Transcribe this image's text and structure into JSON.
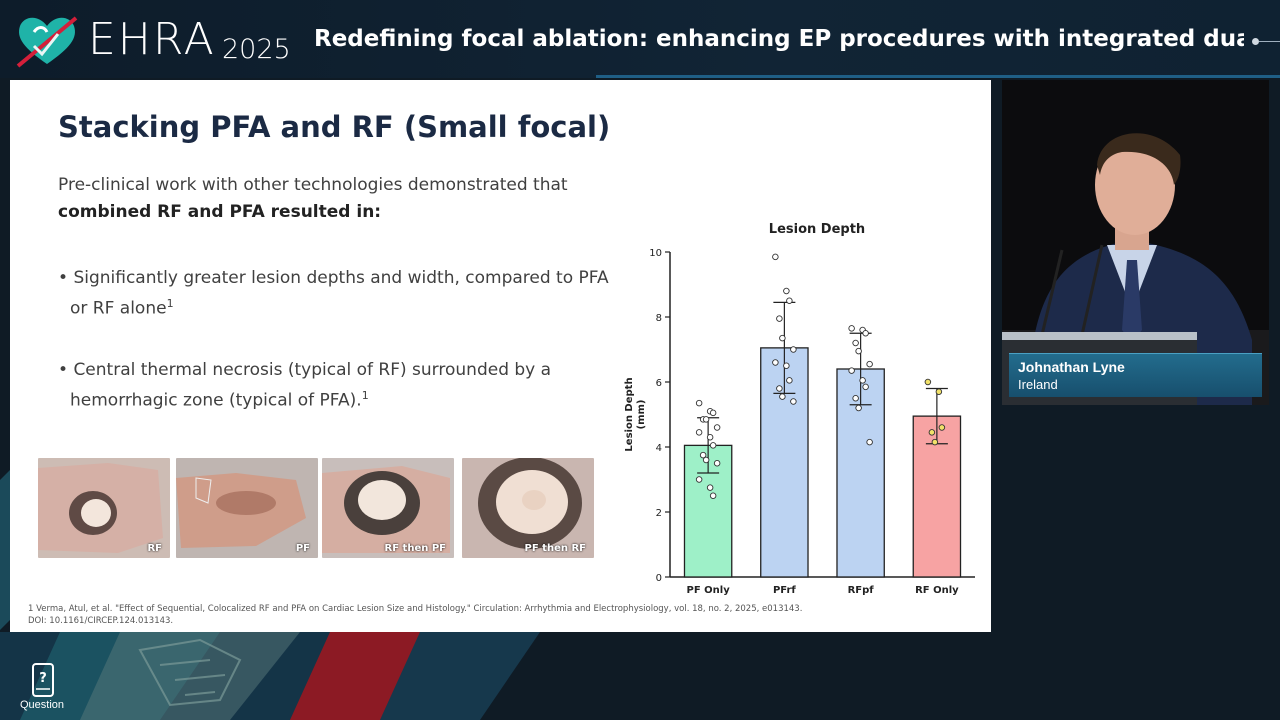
{
  "header": {
    "logo_text": "EHRA",
    "logo_year": "2025",
    "title": "Redefining focal ablation: enhancing EP procedures with integrated dual-e..."
  },
  "slide": {
    "title": "Stacking PFA and RF (Small focal)",
    "intro_line1": "Pre-clinical work with other technologies demonstrated that",
    "intro_line2": "combined RF and PFA resulted in:",
    "bullets": [
      {
        "text": "Significantly greater lesion depths and width, compared to PFA or RF alone",
        "sup": "1"
      },
      {
        "text": "Central thermal necrosis (typical of RF) surrounded by a hemorrhagic zone (typical of PFA).",
        "sup": "1"
      }
    ],
    "photos": [
      {
        "label": "RF"
      },
      {
        "label": "PF"
      },
      {
        "label": "RF then PF"
      },
      {
        "label": "PF then RF"
      }
    ],
    "footnote_line1": "1 Verma, Atul, et al. \"Effect of Sequential, Colocalized RF and PFA on Cardiac Lesion Size and Histology.\" Circulation: Arrhythmia and Electrophysiology, vol. 18, no. 2, 2025, e013143.",
    "footnote_line2": "DOI: 10.1161/CIRCEP.124.013143."
  },
  "chart_data": {
    "type": "bar",
    "title": "Lesion Depth",
    "xlabel": "",
    "ylabel": "Lesion Depth (mm)",
    "ylim": [
      0,
      10
    ],
    "yticks": [
      0,
      2,
      4,
      6,
      8,
      10
    ],
    "categories": [
      "PF Only",
      "PFrf",
      "RFpf",
      "RF Only"
    ],
    "values": [
      4.05,
      7.05,
      6.4,
      4.95
    ],
    "error_high": [
      4.9,
      8.45,
      7.5,
      5.8
    ],
    "error_low": [
      3.2,
      5.65,
      5.3,
      4.1
    ],
    "colors": [
      "#9ef0c8",
      "#bcd3f2",
      "#bcd3f2",
      "#f7a3a3"
    ],
    "points": [
      [
        5.35,
        5.1,
        5.05,
        4.85,
        4.85,
        4.6,
        4.45,
        4.3,
        4.05,
        3.75,
        3.6,
        3.5,
        3.0,
        2.75,
        2.5
      ],
      [
        9.85,
        8.8,
        8.5,
        7.95,
        7.35,
        7.0,
        6.6,
        6.5,
        6.05,
        5.8,
        5.55,
        5.4
      ],
      [
        7.65,
        7.6,
        7.5,
        7.2,
        6.95,
        6.55,
        6.35,
        6.05,
        5.85,
        5.5,
        5.2,
        4.15
      ],
      [
        6.0,
        5.7,
        4.6,
        4.45,
        4.15
      ]
    ]
  },
  "speaker": {
    "name": "Johnathan Lyne",
    "country": "Ireland"
  },
  "question_button": {
    "label": "Question"
  }
}
